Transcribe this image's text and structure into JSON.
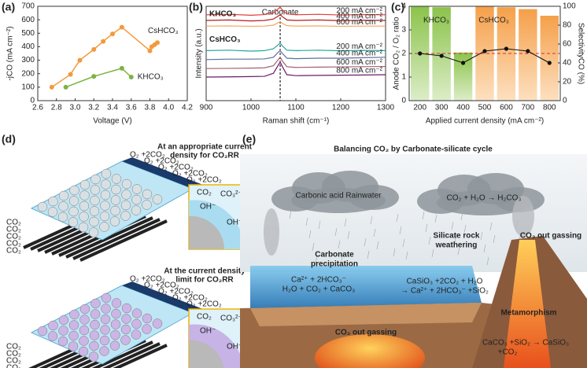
{
  "chart_data": [
    {
      "type": "line",
      "panel_label": "(a)",
      "x_label": "Voltage (V)",
      "y_label": "-jCO (mA cm⁻²)",
      "xlim": [
        2.6,
        4.2
      ],
      "xticks": [
        2.6,
        2.8,
        {
          "value": 3,
          "label": "3.0"
        },
        3.2,
        3.4,
        3.6,
        3.8,
        {
          "value": 4,
          "label": "4.0"
        },
        4.2
      ],
      "ylim": [
        0,
        700
      ],
      "yticks": [
        0,
        100,
        200,
        300,
        400,
        500,
        600,
        700
      ],
      "series": [
        {
          "name": "CsHCO₃",
          "color": "#f39a3c",
          "x": [
            2.75,
            2.95,
            3.05,
            3.2,
            3.3,
            3.4,
            3.5,
            3.8,
            3.82,
            3.85,
            3.88
          ],
          "values": [
            100,
            195,
            300,
            380,
            440,
            495,
            545,
            370,
            400,
            415,
            430
          ]
        },
        {
          "name": "KHCO₃",
          "color": "#7cb342",
          "x": [
            2.9,
            3.2,
            3.5,
            3.6
          ],
          "values": [
            100,
            180,
            240,
            175
          ]
        }
      ]
    },
    {
      "type": "line",
      "panel_label": "(b)",
      "x_label": "Raman shift (cm⁻¹)",
      "y_label": "Intensity (a.u.)",
      "xlim": [
        900,
        1300
      ],
      "xticks": [
        900,
        1000,
        1100,
        1200,
        1300
      ],
      "ylim": [
        0,
        10
      ],
      "annotation": "Carbonate",
      "annotation_x": 1065,
      "groups": [
        {
          "name": "KHCO₃",
          "color": "#6ab04c"
        },
        {
          "name": "CsHCO₃",
          "color": "#f39a3c"
        }
      ],
      "x": [
        900,
        950,
        1000,
        1030,
        1050,
        1060,
        1065,
        1070,
        1080,
        1100,
        1150,
        1200,
        1250,
        1300
      ],
      "series": [
        {
          "name": "200 mA cm⁻²",
          "color": "#e53935",
          "values": [
            9.1,
            9.15,
            9.05,
            9.12,
            9.3,
            9.7,
            9.9,
            9.6,
            9.2,
            9.1,
            9.15,
            9.08,
            9.12,
            9.1
          ]
        },
        {
          "name": "400 mA cm⁻²",
          "color": "#b71c1c",
          "values": [
            8.5,
            8.55,
            8.45,
            8.5,
            8.65,
            8.95,
            9.1,
            8.9,
            8.55,
            8.5,
            8.55,
            8.48,
            8.52,
            8.5
          ]
        },
        {
          "name": "600 mA cm⁻²",
          "color": "#f5a25d",
          "values": [
            7.9,
            7.92,
            7.88,
            7.9,
            8.0,
            8.25,
            8.35,
            8.2,
            7.95,
            7.9,
            7.92,
            7.88,
            7.9,
            7.9
          ]
        },
        {
          "name": "200 mA cm⁻²",
          "color": "#26a69a",
          "values": [
            5.3,
            5.35,
            5.25,
            5.3,
            5.5,
            5.9,
            6.1,
            5.8,
            5.35,
            5.3,
            5.35,
            5.28,
            5.32,
            5.3
          ]
        },
        {
          "name": "400 mA cm⁻²",
          "color": "#5c6f9e",
          "values": [
            4.35,
            4.4,
            4.4,
            4.42,
            4.6,
            5.1,
            5.3,
            5.0,
            4.5,
            4.45,
            4.5,
            4.5,
            4.55,
            4.6
          ]
        },
        {
          "name": "600 mA cm⁻²",
          "color": "#a0607a",
          "values": [
            3.4,
            3.42,
            3.45,
            3.48,
            3.7,
            4.3,
            4.6,
            4.2,
            3.6,
            3.52,
            3.55,
            3.58,
            3.6,
            3.62
          ]
        },
        {
          "name": "800 mA cm⁻²",
          "color": "#6a1b6a",
          "values": [
            2.5,
            2.52,
            2.55,
            2.58,
            2.9,
            3.7,
            4.1,
            3.6,
            2.75,
            2.65,
            2.68,
            2.7,
            2.72,
            2.75
          ]
        }
      ]
    },
    {
      "type": "bar",
      "panel_label": "(c)",
      "x_label": "Applied current density (mA cm⁻²)",
      "y_label": "Anode CO₂ / O₂ ratio",
      "y2_label": "SelectivityCO (%)",
      "categories": [
        "200",
        "300",
        "400",
        "500",
        "600",
        "700",
        "800"
      ],
      "ylim": [
        0,
        4
      ],
      "yticks": [
        0,
        1,
        2,
        3,
        4
      ],
      "y2lim": [
        0,
        100
      ],
      "y2ticks": [
        0,
        20,
        40,
        60,
        80,
        100
      ],
      "reference_line": 2,
      "reference_color": "#d32f2f",
      "series": [
        {
          "name": "KHCO₃",
          "color": "#7cb342",
          "axis": "y2",
          "values": [
            100,
            99,
            51,
            null,
            null,
            null,
            null
          ]
        },
        {
          "name": "CsHCO₃",
          "color": "#f5a04a",
          "axis": "y2",
          "values": [
            null,
            null,
            null,
            100,
            99,
            97,
            90
          ]
        }
      ],
      "line_values": [
        2.0,
        1.9,
        1.6,
        2.1,
        2.2,
        2.1,
        1.6
      ],
      "line_color": "#111111"
    }
  ],
  "panel_d": {
    "panel_label": "(d)",
    "top_caption": [
      "At an appropriate  current",
      "density for CO₂RR"
    ],
    "bottom_caption": [
      "At the current density",
      "limit for CO₂RR"
    ],
    "gas": "O₂ +2CO₂",
    "co2": "CO₂",
    "carbonate": "CO₃²⁻",
    "hydroxide": "OH⁻"
  },
  "panel_e": {
    "panel_label": "(e)",
    "title": "Balancing CO₂ by Carbonate-silicate cycle",
    "rainwater": "Carbonic acid Rainwater",
    "rain_reaction": "CO₂ + H₂O → H₂CO₃",
    "weathering": [
      "Silicate rock",
      "weathering"
    ],
    "precipitation": [
      "Carbonate",
      "precipitation"
    ],
    "weathering_reaction": [
      "CaSiO₃ +2CO₂ + H₂O",
      "→ Ca²⁺ + 2HCO₃⁻ +SiO₂"
    ],
    "precipitation_reaction": [
      "Ca²⁺ + 2HCO₃⁻",
      "H₂O + CO₂ +  CaCO₃"
    ],
    "outgassing": "CO₂ out gassing",
    "metamorphism": "Metamorphism",
    "metamorphism_reaction": [
      "CaCO₃ +SiO₂ → CaSiO₃",
      "+CO₂"
    ]
  }
}
